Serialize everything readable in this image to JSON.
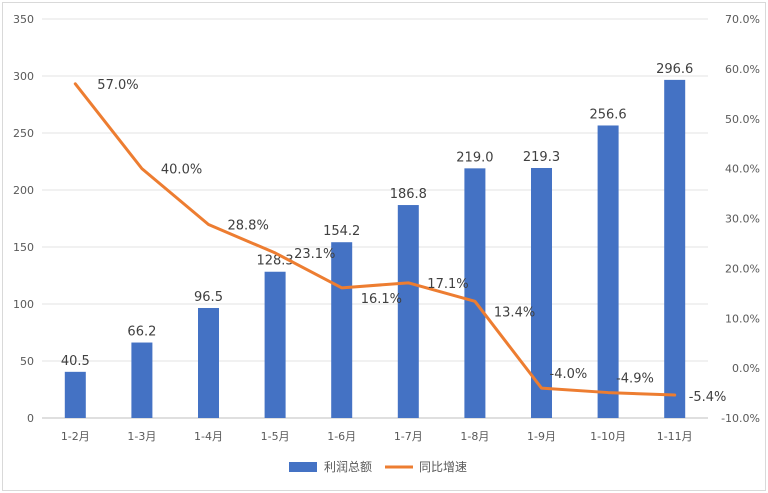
{
  "chart_data": {
    "type": "bar",
    "categories": [
      "1-2月",
      "1-3月",
      "1-4月",
      "1-5月",
      "1-6月",
      "1-7月",
      "1-8月",
      "1-9月",
      "1-10月",
      "1-11月"
    ],
    "series": [
      {
        "name": "利润总额",
        "type": "bar",
        "axis": "left",
        "color": "#4472c4",
        "values": [
          40.5,
          66.2,
          96.5,
          128.3,
          154.2,
          186.8,
          219.0,
          219.3,
          256.6,
          296.6
        ],
        "labels": [
          "40.5",
          "66.2",
          "96.5",
          "128.3",
          "154.2",
          "186.8",
          "219.0",
          "219.3",
          "256.6",
          "296.6"
        ]
      },
      {
        "name": "同比增速",
        "type": "line",
        "axis": "right",
        "color": "#ed7d31",
        "values": [
          57.0,
          40.0,
          28.8,
          23.1,
          16.1,
          17.1,
          13.4,
          -4.0,
          -4.9,
          -5.4
        ],
        "labels": [
          "57.0%",
          "40.0%",
          "28.8%",
          "23.1%",
          "16.1%",
          "17.1%",
          "13.4%",
          "-4.0%",
          "-4.9%",
          "-5.4%"
        ]
      }
    ],
    "y_left": {
      "ylim": [
        0,
        350
      ],
      "ticks": [
        "0",
        "50",
        "100",
        "150",
        "200",
        "250",
        "300",
        "350"
      ]
    },
    "y_right": {
      "ylim": [
        -10,
        70
      ],
      "ticks": [
        "-10.0%",
        "0.0%",
        "10.0%",
        "20.0%",
        "30.0%",
        "40.0%",
        "50.0%",
        "60.0%",
        "70.0%"
      ]
    },
    "grid": true,
    "legend_position": "bottom"
  }
}
